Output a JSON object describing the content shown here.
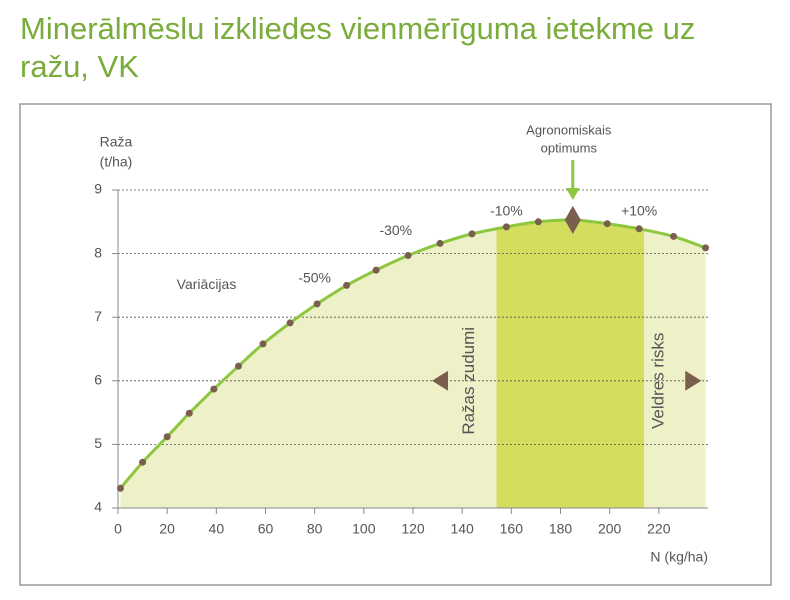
{
  "chart_data": {
    "type": "line",
    "title": "Minerālmēslu izkliedes vienmērīguma ietekme uz ražu, VK",
    "y_label": [
      "Raža",
      "(t/ha)"
    ],
    "x_label": "N (kg/ha)",
    "xlim": [
      0,
      240
    ],
    "ylim": [
      4,
      9
    ],
    "xticks": [
      0,
      20,
      40,
      60,
      80,
      100,
      120,
      140,
      160,
      180,
      200,
      220
    ],
    "yticks": [
      4,
      5,
      6,
      7,
      8,
      9
    ],
    "grid": true,
    "series": [
      {
        "name": "Raža",
        "color": "#8dc63f",
        "x": [
          1,
          10,
          20,
          29,
          39,
          49,
          59,
          70,
          81,
          93,
          105,
          118,
          131,
          144,
          158,
          171,
          185,
          199,
          212,
          226,
          239
        ],
        "values": [
          4.31,
          4.72,
          5.12,
          5.49,
          5.87,
          6.23,
          6.58,
          6.91,
          7.21,
          7.5,
          7.74,
          7.97,
          8.16,
          8.31,
          8.42,
          8.5,
          8.53,
          8.47,
          8.39,
          8.27,
          8.09
        ]
      }
    ],
    "band": {
      "x": [
        154,
        214
      ],
      "color": "#d4dd5e"
    },
    "optimum": {
      "x": 185,
      "y": 8.53,
      "label": [
        "Agronomiskais",
        "optimums"
      ]
    },
    "annotations": [
      {
        "text": "-50%",
        "x": 80,
        "y": 7.6
      },
      {
        "text": "-30%",
        "x": 113,
        "y": 8.35
      },
      {
        "text": "-10%",
        "x": 158,
        "y": 8.66
      },
      {
        "text": "+10%",
        "x": 212,
        "y": 8.66
      },
      {
        "text": "Variācijas",
        "x": 36,
        "y": 7.5
      }
    ],
    "side_labels": [
      {
        "text": "Ražas zudumi",
        "x": 143,
        "y": 6,
        "arrow": "left",
        "arrow_x": 131
      },
      {
        "text": "Veldres risks",
        "x": 220,
        "y": 6,
        "arrow": "right",
        "arrow_x": 234
      }
    ]
  }
}
